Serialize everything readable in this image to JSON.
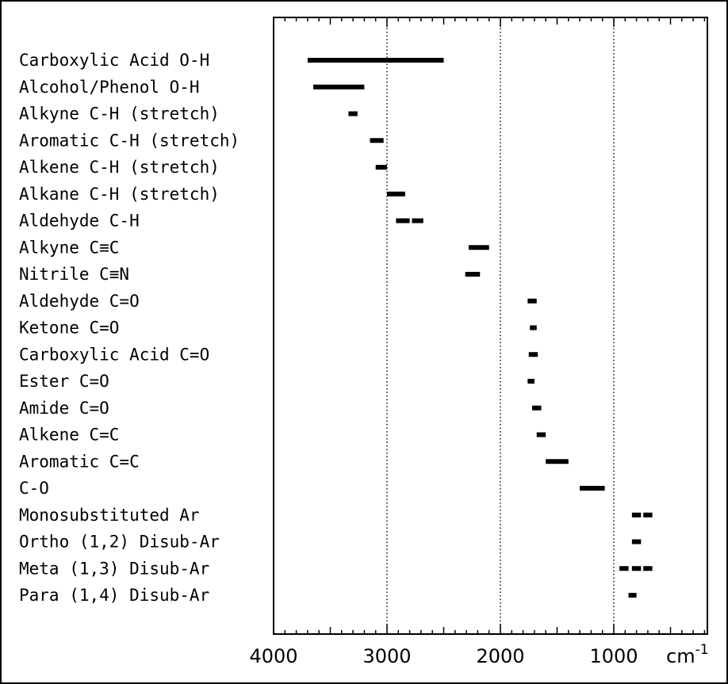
{
  "chart_data": {
    "type": "range",
    "title": "",
    "xlabel": "",
    "ylabel": "",
    "x_unit": "cm",
    "x_unit_superscript": "-1",
    "x_reversed": true,
    "xlim": [
      4000,
      200
    ],
    "x_ticks": [
      {
        "value": 4000,
        "label": "4000"
      },
      {
        "value": 3000,
        "label": "3000"
      },
      {
        "value": 2000,
        "label": "2000"
      },
      {
        "value": 1000,
        "label": "1000"
      }
    ],
    "gridlines_x": [
      3000,
      2000,
      1000
    ],
    "grid": "dotted vertical at major ticks",
    "legend": "none",
    "bar_color": "#000000",
    "items": [
      {
        "label": "Carboxylic Acid O-H",
        "ranges": [
          [
            3700,
            2500
          ]
        ]
      },
      {
        "label": "Alcohol/Phenol O-H",
        "ranges": [
          [
            3650,
            3200
          ]
        ]
      },
      {
        "label": "Alkyne C-H (stretch)",
        "ranges": [
          [
            3340,
            3260
          ]
        ]
      },
      {
        "label": "Aromatic C-H (stretch)",
        "ranges": [
          [
            3150,
            3030
          ]
        ]
      },
      {
        "label": "Alkene C-H (stretch)",
        "ranges": [
          [
            3100,
            3000
          ]
        ]
      },
      {
        "label": "Alkane C-H (stretch)",
        "ranges": [
          [
            3000,
            2840
          ]
        ]
      },
      {
        "label": "Aldehyde C-H",
        "ranges": [
          [
            2920,
            2800
          ],
          [
            2780,
            2680
          ]
        ]
      },
      {
        "label": "Alkyne C≡C",
        "ranges": [
          [
            2280,
            2100
          ]
        ]
      },
      {
        "label": "Nitrile C≡N",
        "ranges": [
          [
            2310,
            2180
          ]
        ]
      },
      {
        "label": "Aldehyde C=O",
        "ranges": [
          [
            1760,
            1680
          ]
        ]
      },
      {
        "label": "Ketone C=O",
        "ranges": [
          [
            1740,
            1680
          ]
        ]
      },
      {
        "label": "Carboxylic Acid C=O",
        "ranges": [
          [
            1750,
            1670
          ]
        ]
      },
      {
        "label": "Ester C=O",
        "ranges": [
          [
            1760,
            1700
          ]
        ]
      },
      {
        "label": "Amide C=O",
        "ranges": [
          [
            1720,
            1640
          ]
        ]
      },
      {
        "label": "Alkene C=C",
        "ranges": [
          [
            1680,
            1600
          ]
        ]
      },
      {
        "label": "Aromatic C=C",
        "ranges": [
          [
            1600,
            1400
          ]
        ]
      },
      {
        "label": "C-O",
        "ranges": [
          [
            1300,
            1080
          ]
        ]
      },
      {
        "label": "Monosubstituted Ar",
        "ranges": [
          [
            840,
            760
          ],
          [
            740,
            660
          ]
        ]
      },
      {
        "label": "Ortho (1,2) Disub-Ar",
        "ranges": [
          [
            840,
            760
          ]
        ]
      },
      {
        "label": "Meta (1,3) Disub-Ar",
        "ranges": [
          [
            950,
            870
          ],
          [
            840,
            760
          ],
          [
            740,
            660
          ]
        ]
      },
      {
        "label": "Para (1,4) Disub-Ar",
        "ranges": [
          [
            870,
            800
          ]
        ]
      }
    ]
  }
}
